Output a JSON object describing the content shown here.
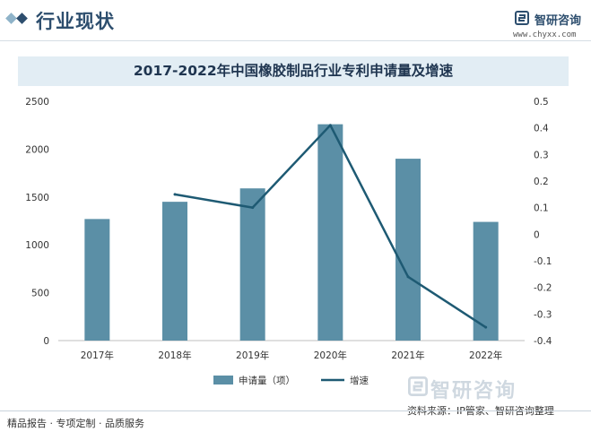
{
  "header": {
    "section_title": "行业现状",
    "brand_name": "智研咨询",
    "brand_url": "www.chyxx.com"
  },
  "watermark": {
    "logo_text": "智研咨询"
  },
  "footer": {
    "left_text": "精品报告 · 专项定制 · 品质服务",
    "source_text": "资料来源：IP管家、智研咨询整理"
  },
  "colors": {
    "bar": "#5b8fa6",
    "line": "#1e5a73",
    "accent": "#2d4e6e"
  },
  "chart_data": {
    "type": "bar",
    "title": "2017-2022年中国橡胶制品行业专利申请量及增速",
    "categories": [
      "2017年",
      "2018年",
      "2019年",
      "2020年",
      "2021年",
      "2022年"
    ],
    "series": [
      {
        "name": "申请量（项）",
        "type": "bar",
        "axis": "left",
        "values": [
          1270,
          1450,
          1590,
          2260,
          1900,
          1240
        ]
      },
      {
        "name": "增速",
        "type": "line",
        "axis": "right",
        "values": [
          null,
          0.15,
          0.1,
          0.41,
          -0.16,
          -0.35
        ]
      }
    ],
    "y_left": {
      "min": 0,
      "max": 2500,
      "ticks": [
        "0",
        "500",
        "1000",
        "1500",
        "2000",
        "2500"
      ]
    },
    "y_right": {
      "min": -0.4,
      "max": 0.5,
      "ticks": [
        "-0.4",
        "-0.3",
        "-0.2",
        "-0.1",
        "0",
        "0.1",
        "0.2",
        "0.3",
        "0.4",
        "0.5"
      ]
    },
    "grid": false,
    "legend": "bottom"
  }
}
